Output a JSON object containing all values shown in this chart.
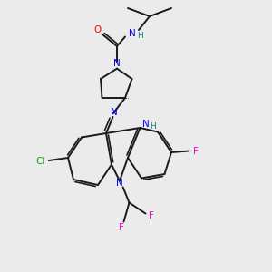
{
  "bg_color": "#ebebeb",
  "bond_color": "#1a1a1a",
  "N_color": "#0000ff",
  "O_color": "#ff0000",
  "Cl_color": "#00aa00",
  "F_color": "#ff00cc",
  "H_color": "#008080",
  "line_width": 1.4,
  "fig_size": [
    3.0,
    3.0
  ],
  "dpi": 100,
  "xlim": [
    0,
    10
  ],
  "ylim": [
    0,
    10
  ]
}
